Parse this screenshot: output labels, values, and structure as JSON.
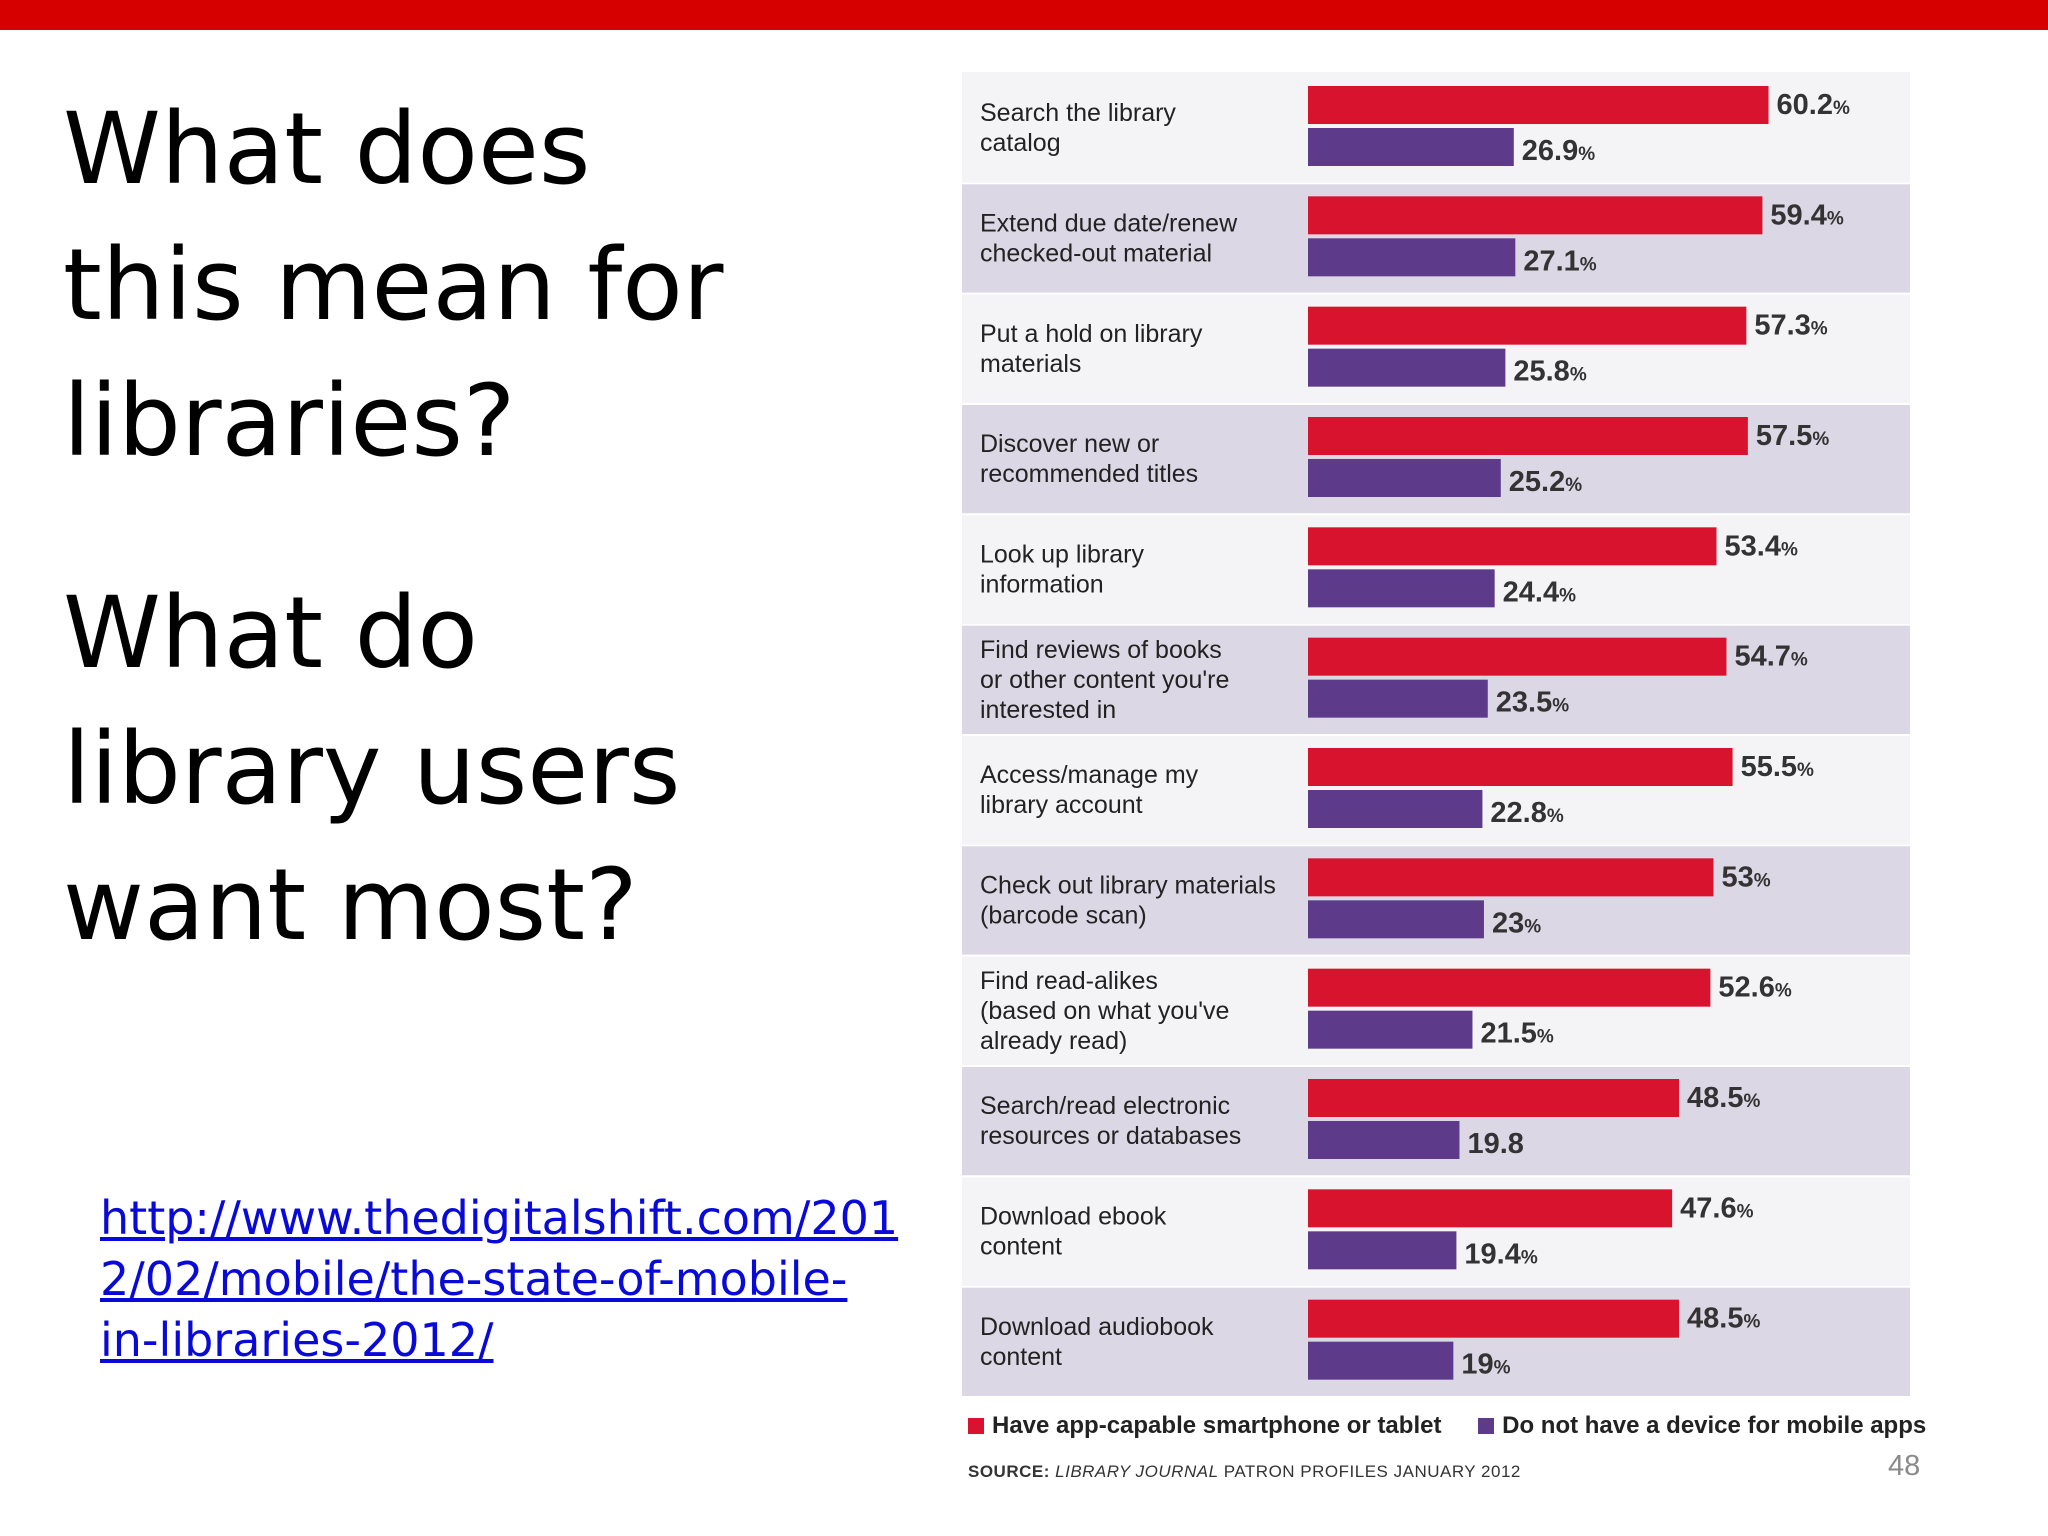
{
  "slide": {
    "question1": [
      "What does",
      "this mean for",
      "libraries?"
    ],
    "question2": [
      "What do",
      "library users",
      "want most?"
    ],
    "link": [
      "http://www.thedigitalshift.com/201",
      "2/02/mobile/the-state-of-mobile-",
      "in-libraries-2012/"
    ],
    "page_number": "48"
  },
  "legend": {
    "series1": "Have app-capable smartphone or tablet",
    "series2": "Do not have a device for mobile apps"
  },
  "source": {
    "label": "SOURCE:",
    "publication": "LIBRARY JOURNAL",
    "rest": "PATRON PROFILES JANUARY 2012"
  },
  "colors": {
    "series1": "#d7132d",
    "series2": "#5d3a8a",
    "top_bar": "#d60000"
  },
  "chart_data": {
    "type": "bar",
    "orientation": "horizontal",
    "categories": [
      [
        "Search the library",
        "catalog"
      ],
      [
        "Extend due date/renew",
        "checked-out material"
      ],
      [
        "Put a hold on library",
        "materials"
      ],
      [
        "Discover new or",
        "recommended titles"
      ],
      [
        "Look up library",
        "information"
      ],
      [
        "Find reviews of books",
        "or other content you're",
        "interested in"
      ],
      [
        "Access/manage my",
        "library account"
      ],
      [
        "Check out library materials",
        "(barcode scan)"
      ],
      [
        "Find read-alikes",
        "(based on what you've",
        "already read)"
      ],
      [
        "Search/read electronic",
        "resources or databases"
      ],
      [
        "Download ebook",
        "content"
      ],
      [
        "Download audiobook",
        "content"
      ]
    ],
    "series": [
      {
        "name": "Have app-capable smartphone or tablet",
        "values": [
          60.2,
          59.4,
          57.3,
          57.5,
          53.4,
          54.7,
          55.5,
          53,
          52.6,
          48.5,
          47.6,
          48.5
        ],
        "labels": [
          "60.2",
          "59.4",
          "57.3",
          "57.5",
          "53.4",
          "54.7",
          "55.5",
          "53",
          "52.6",
          "48.5",
          "47.6",
          "48.5"
        ],
        "units": [
          "%",
          "%",
          "%",
          "%",
          "%",
          "%",
          "%",
          "%",
          "%",
          "%",
          "%",
          "%"
        ]
      },
      {
        "name": "Do not have a device for mobile apps",
        "values": [
          26.9,
          27.1,
          25.8,
          25.2,
          24.4,
          23.5,
          22.8,
          23,
          21.5,
          19.8,
          19.4,
          19
        ],
        "labels": [
          "26.9",
          "27.1",
          "25.8",
          "25.2",
          "24.4",
          "23.5",
          "22.8",
          "23",
          "21.5",
          "19.8",
          "19.4",
          "19"
        ],
        "units": [
          "%",
          "%",
          "%",
          "%",
          "%",
          "%",
          "%",
          "%",
          "%",
          "",
          "%",
          "%"
        ]
      }
    ]
  }
}
